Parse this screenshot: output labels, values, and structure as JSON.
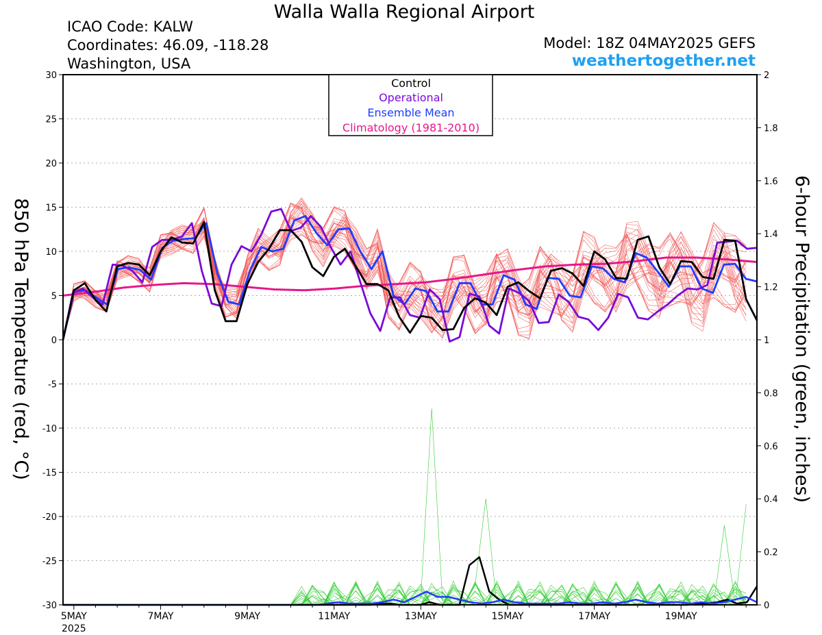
{
  "header": {
    "title": "Walla Walla Regional Airport",
    "icao": "ICAO Code: KALW",
    "coordinates": "Coordinates: 46.09, -118.28",
    "location": "Washington, USA",
    "model": "Model: 18Z 04MAY2025 GEFS",
    "site": "weathertogether.net"
  },
  "chart_data": {
    "type": "line",
    "ylabel": "850 hPa Temperature (red, °C)",
    "y2label": "6-hour Precipitation (green, inches)",
    "ylim": [
      -30,
      30
    ],
    "y2lim": [
      0,
      2
    ],
    "yticks": [
      "30",
      "25",
      "20",
      "15",
      "10",
      "5",
      "0",
      "-5",
      "-10",
      "-15",
      "-20",
      "-25",
      "-30"
    ],
    "y2ticks": [
      "2",
      "1.8",
      "1.6",
      "1.4",
      "1.2",
      "1",
      "0.8",
      "0.6",
      "0.4",
      "0.2",
      "0"
    ],
    "xlim": [
      0,
      64
    ],
    "xticks": [
      {
        "t": 1,
        "label": "5MAY",
        "sub": "2025"
      },
      {
        "t": 9,
        "label": "7MAY"
      },
      {
        "t": 17,
        "label": "9MAY"
      },
      {
        "t": 25,
        "label": "11MAY"
      },
      {
        "t": 33,
        "label": "13MAY"
      },
      {
        "t": 41,
        "label": "15MAY"
      },
      {
        "t": 49,
        "label": "17MAY"
      },
      {
        "t": 57,
        "label": "19MAY"
      }
    ],
    "legend": [
      "Control",
      "Operational",
      "Ensemble Mean",
      "Climatology (1981-2010)"
    ],
    "colors": {
      "control": "#000000",
      "operational": "#7a0ad6",
      "mean": "#1e3cff",
      "climatology": "#e5178a",
      "members": "#f05050",
      "precip_members": "#33cc33",
      "site": "#1ea0f0"
    },
    "series": [
      {
        "name": "Control",
        "values": [
          0.0,
          5.6,
          6.4,
          4.5,
          3.2,
          8.3,
          8.7,
          8.5,
          7.3,
          10.0,
          11.6,
          11.0,
          10.9,
          13.3,
          5.6,
          2.1,
          2.1,
          6.3,
          8.8,
          10.3,
          12.4,
          12.4,
          11.1,
          8.2,
          7.2,
          9.4,
          10.3,
          8.3,
          6.3,
          6.3,
          5.6,
          2.6,
          0.8,
          2.7,
          2.5,
          1.1,
          1.2,
          3.6,
          4.7,
          4.2,
          2.8,
          6.0,
          6.5,
          5.5,
          4.7,
          7.8,
          8.1,
          7.5,
          6.1,
          10.0,
          9.1,
          7.0,
          6.9,
          11.3,
          11.7,
          8.2,
          6.3,
          8.9,
          8.8,
          7.1,
          6.9,
          11.3,
          11.2,
          4.6,
          2.2
        ]
      },
      {
        "name": "Operational",
        "values": [
          0.0,
          5.3,
          5.8,
          4.8,
          4.0,
          8.5,
          8.4,
          7.8,
          6.5,
          10.5,
          11.3,
          11.3,
          11.7,
          13.2,
          7.8,
          4.1,
          3.8,
          8.5,
          10.6,
          10.0,
          11.9,
          14.5,
          14.8,
          12.3,
          12.7,
          14.0,
          12.8,
          10.5,
          8.5,
          10.0,
          6.5,
          3.0,
          1.0,
          4.8,
          4.8,
          2.8,
          2.5,
          5.7,
          4.6,
          -0.2,
          0.3,
          5.2,
          4.9,
          1.6,
          0.7,
          5.8,
          5.3,
          4.4,
          1.9,
          2.0,
          5.1,
          4.3,
          2.6,
          2.3,
          1.1,
          2.5,
          5.2,
          4.8,
          2.5,
          2.3,
          3.2,
          4.0,
          5.0,
          5.8,
          5.7,
          6.2,
          11.0,
          11.1,
          11.2,
          10.3,
          10.4
        ]
      },
      {
        "name": "Ensemble Mean",
        "values": [
          0.0,
          5.4,
          5.6,
          4.8,
          4.0,
          8.0,
          8.2,
          7.9,
          6.8,
          10.4,
          11.2,
          11.4,
          11.5,
          13.2,
          7.6,
          4.3,
          4.0,
          7.9,
          10.5,
          10.0,
          10.3,
          13.5,
          14.0,
          12.1,
          10.7,
          12.5,
          12.6,
          10.0,
          8.0,
          10.0,
          5.0,
          4.0,
          5.8,
          5.5,
          3.2,
          3.2,
          6.4,
          6.4,
          4.0,
          4.0,
          7.3,
          6.8,
          4.0,
          3.5,
          7.0,
          6.9,
          5.0,
          4.8,
          8.3,
          8.1,
          6.9,
          6.5,
          9.8,
          9.3,
          7.7,
          6.0,
          8.3,
          8.3,
          5.8,
          5.3,
          8.5,
          8.6,
          6.9,
          6.6
        ]
      },
      {
        "name": "Climatology (1981-2010)",
        "values": [
          5.0,
          5.4,
          5.9,
          6.2,
          6.4,
          6.3,
          6.0,
          5.7,
          5.6,
          5.8,
          6.1,
          6.3,
          6.5,
          6.9,
          7.4,
          7.9,
          8.3,
          8.5,
          8.6,
          8.9,
          9.3,
          9.3,
          9.1,
          8.8
        ]
      },
      {
        "name": "Control precip",
        "values": [
          0,
          0,
          0,
          0,
          0,
          0,
          0,
          0,
          0,
          0,
          0,
          0,
          0,
          0,
          0,
          0,
          0,
          0,
          0,
          0,
          0,
          0,
          0,
          0,
          0,
          0,
          0,
          0,
          0,
          0,
          0,
          0,
          0.003,
          0.005,
          0,
          0,
          0,
          0.01,
          0,
          0,
          0,
          0.15,
          0.18,
          0.05,
          0.02,
          0,
          0,
          0,
          0,
          0,
          0,
          0,
          0,
          0,
          0,
          0,
          0,
          0,
          0,
          0,
          0,
          0,
          0,
          0,
          0.005,
          0.005,
          0.01,
          0.02,
          0.005,
          0.01,
          0.07
        ]
      },
      {
        "name": "Mean precip",
        "values": [
          0,
          0,
          0,
          0,
          0,
          0,
          0,
          0,
          0,
          0,
          0,
          0,
          0,
          0,
          0,
          0,
          0,
          0,
          0,
          0,
          0,
          0,
          0,
          0,
          0.005,
          0.01,
          0.005,
          0.005,
          0.005,
          0.01,
          0.02,
          0.01,
          0.03,
          0.05,
          0.03,
          0.03,
          0.02,
          0.01,
          0.005,
          0.01,
          0.02,
          0.01,
          0.005,
          0.005,
          0.005,
          0.005,
          0.01,
          0.005,
          0.005,
          0.01,
          0.005,
          0.01,
          0.02,
          0.01,
          0.005,
          0.01,
          0.01,
          0.005,
          0.01,
          0.005,
          0.01,
          0.02,
          0.03,
          0.01
        ]
      }
    ]
  }
}
